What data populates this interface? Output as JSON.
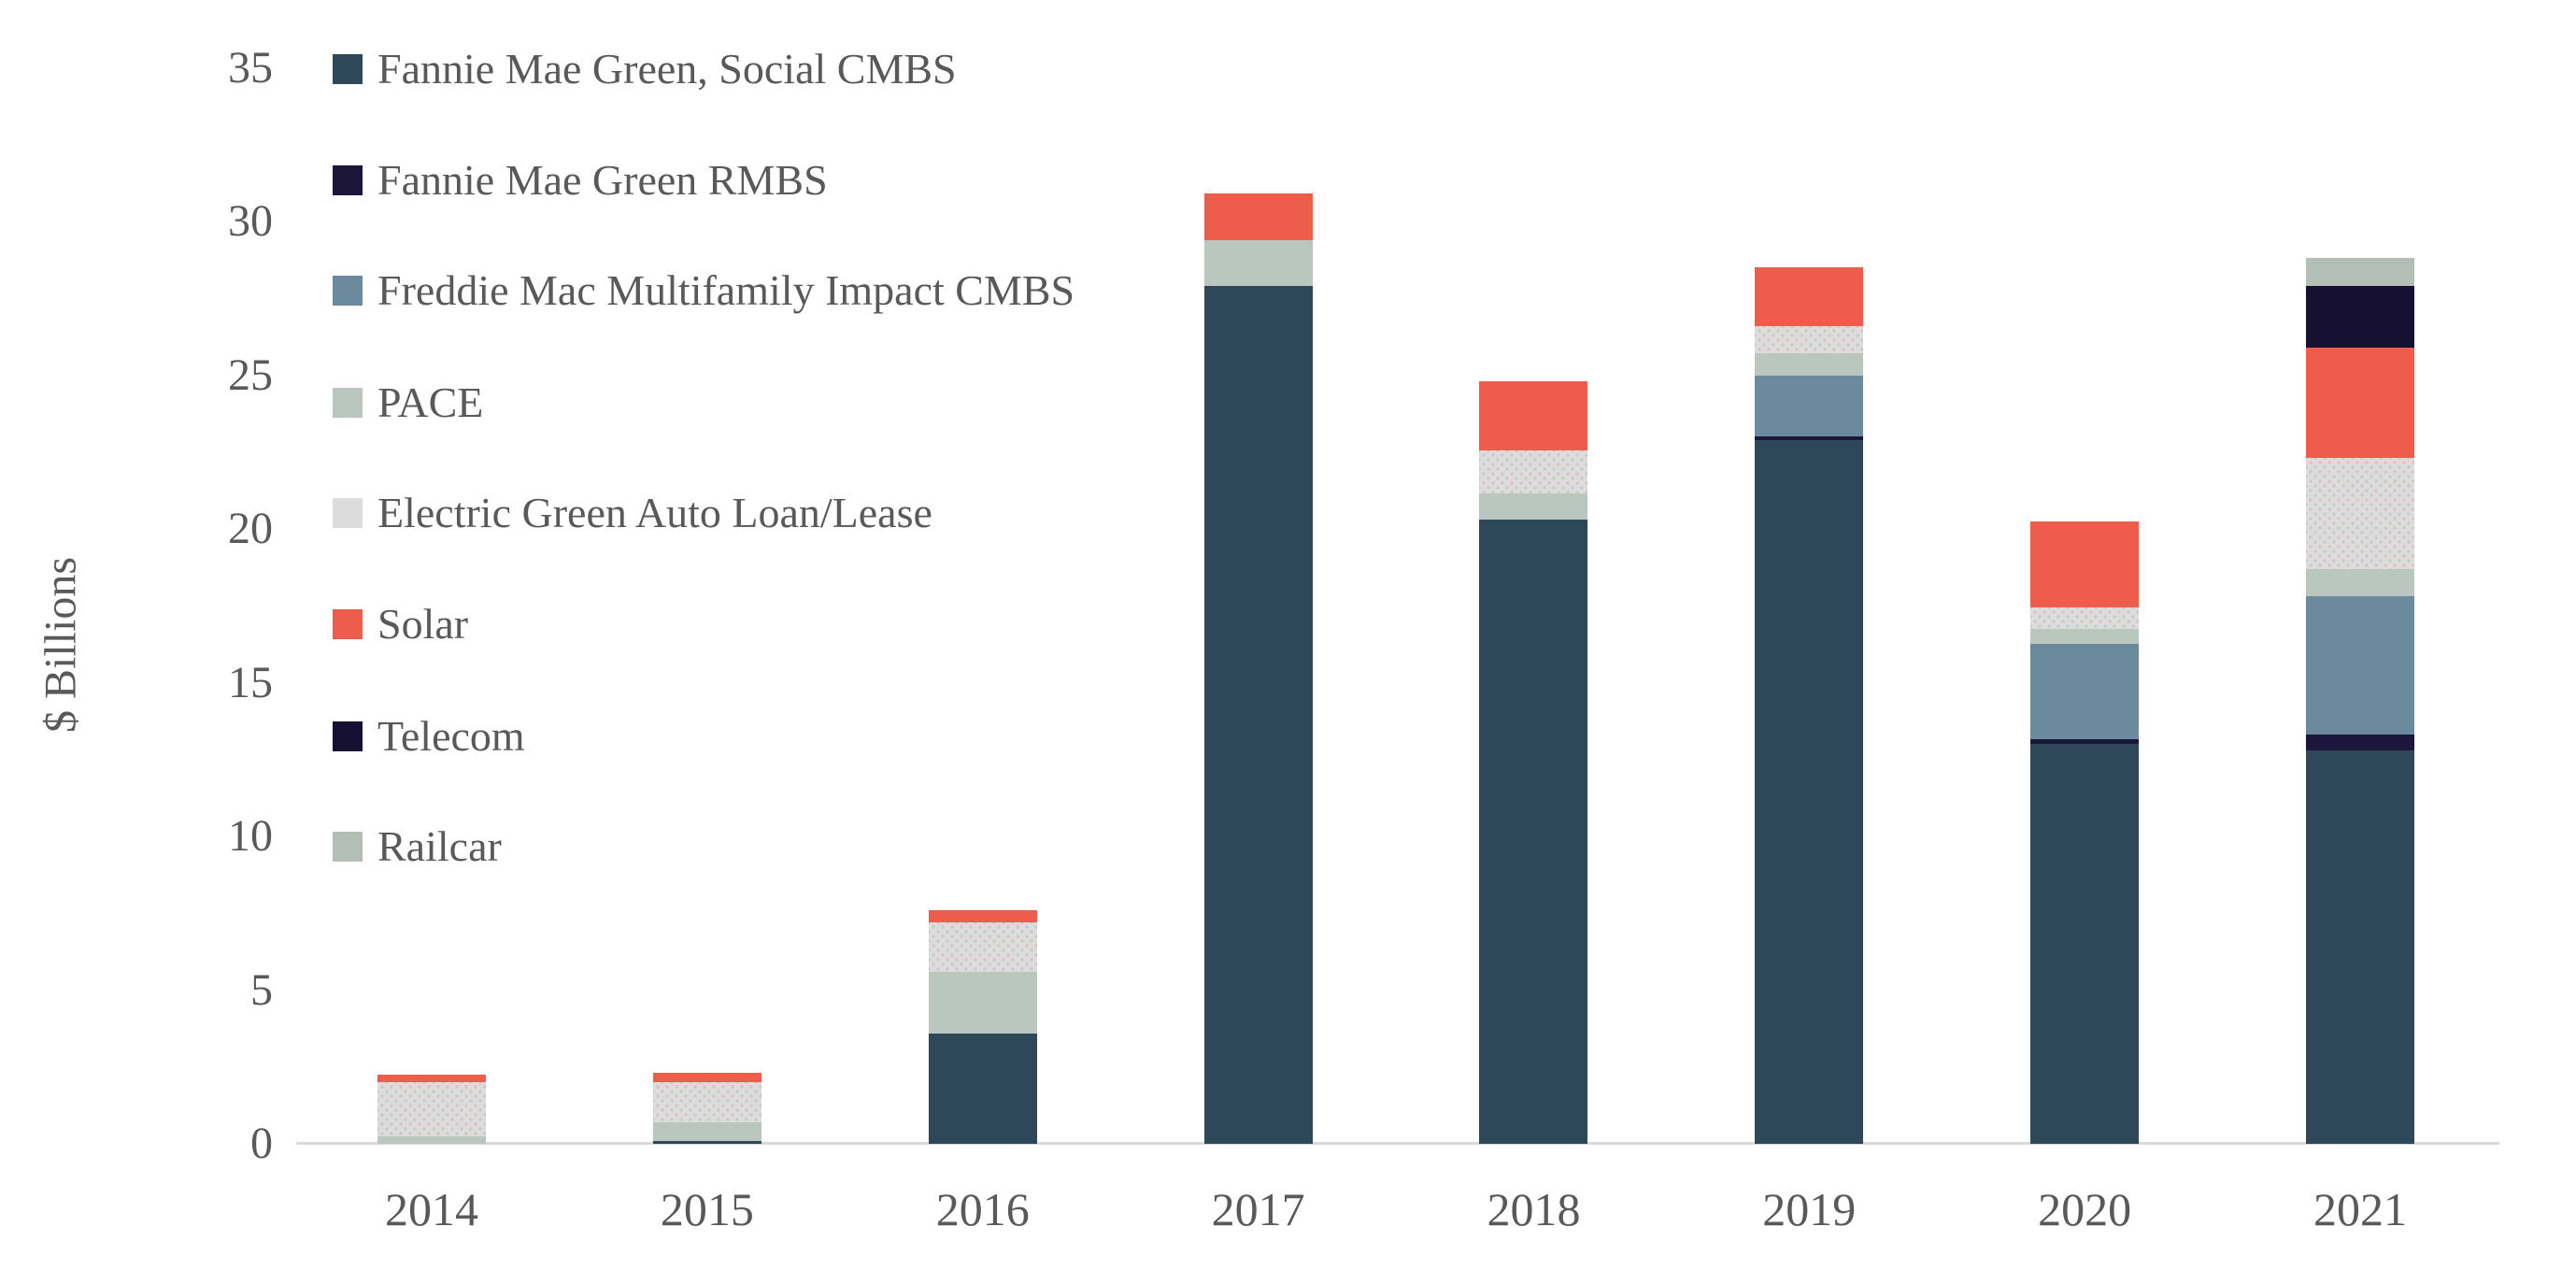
{
  "chart_data": {
    "type": "bar",
    "stacked": true,
    "title": "",
    "xlabel": "",
    "ylabel": "$ Billions",
    "ylim": [
      0,
      35
    ],
    "y_ticks": [
      0,
      5,
      10,
      15,
      20,
      25,
      30,
      35
    ],
    "grid": false,
    "legend_position": "top-left",
    "categories": [
      "2014",
      "2015",
      "2016",
      "2017",
      "2018",
      "2019",
      "2020",
      "2021"
    ],
    "series": [
      {
        "name": "Fannie Mae Green, Social CMBS",
        "color": "#2E4859",
        "pattern": "solid",
        "values": [
          0,
          0.1,
          3.6,
          27.9,
          20.3,
          22.9,
          13.0,
          12.8
        ]
      },
      {
        "name": "Fannie Mae Green RMBS",
        "color": "#1B163A",
        "pattern": "solid",
        "values": [
          0,
          0,
          0,
          0,
          0,
          0.1,
          0.15,
          0.5
        ]
      },
      {
        "name": "Freddie Mac Multifamily Impact CMBS",
        "color": "#6C8A9D",
        "pattern": "solid",
        "values": [
          0,
          0,
          0,
          0,
          0,
          2.0,
          3.1,
          4.5
        ]
      },
      {
        "name": "PACE",
        "color": "#BAC7BF",
        "pattern": "solid",
        "values": [
          0.25,
          0.6,
          2.0,
          1.5,
          0.85,
          0.7,
          0.5,
          0.9
        ]
      },
      {
        "name": "Electric Green Auto Loan/Lease",
        "color": "#DCDCDC",
        "pattern": "stipple",
        "values": [
          1.75,
          1.3,
          1.6,
          0,
          1.4,
          0.9,
          0.7,
          3.6
        ]
      },
      {
        "name": "Solar",
        "color": "#EE5C4C",
        "pattern": "solid",
        "values": [
          0.25,
          0.3,
          0.4,
          1.5,
          2.25,
          1.9,
          2.8,
          3.6
        ]
      },
      {
        "name": "Telecom",
        "color": "#161132",
        "pattern": "solid",
        "values": [
          0,
          0,
          0,
          0,
          0,
          0,
          0,
          2.0
        ]
      },
      {
        "name": "Railcar",
        "color": "#B2BEB6",
        "pattern": "solid",
        "values": [
          0,
          0,
          0,
          0,
          0,
          0,
          0,
          0.9
        ]
      }
    ]
  },
  "style": {
    "axis_color": "#D9D9D9",
    "text_color": "#595959",
    "background": "#FFFFFF"
  }
}
